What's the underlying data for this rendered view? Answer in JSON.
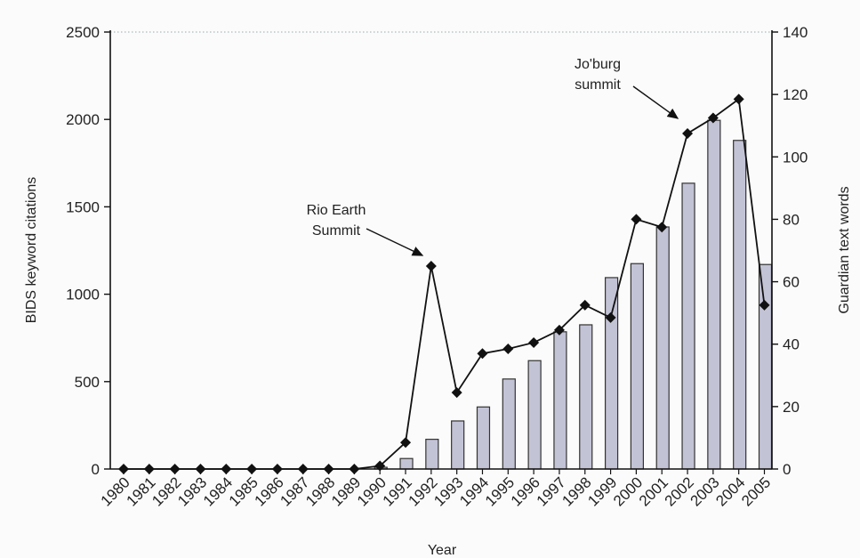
{
  "chart_data": {
    "type": "bar",
    "title": "",
    "xlabel": "Year",
    "ylabel_left": "BIDS keyword citations",
    "ylabel_right": "Guardian text words",
    "categories": [
      "1980",
      "1981",
      "1982",
      "1983",
      "1984",
      "1985",
      "1986",
      "1987",
      "1988",
      "1989",
      "1990",
      "1991",
      "1992",
      "1993",
      "1994",
      "1995",
      "1996",
      "1997",
      "1998",
      "1999",
      "2000",
      "2001",
      "2002",
      "2003",
      "2004",
      "2005"
    ],
    "ylim_left": [
      0,
      2500
    ],
    "yticks_left": [
      0,
      500,
      1000,
      1500,
      2000,
      2500
    ],
    "ylim_right": [
      0,
      140
    ],
    "yticks_right": [
      0,
      20,
      40,
      60,
      80,
      100,
      120,
      140
    ],
    "grid": false,
    "series": [
      {
        "kind": "bar",
        "axis": "left",
        "color": "#c3c3d6",
        "values": [
          0,
          0,
          0,
          0,
          0,
          0,
          0,
          0,
          0,
          0,
          10,
          60,
          170,
          275,
          355,
          515,
          620,
          785,
          825,
          1095,
          1175,
          1385,
          1635,
          1995,
          1880,
          1170
        ]
      },
      {
        "kind": "line",
        "axis": "right",
        "color": "#111111",
        "marker": "diamond",
        "values": [
          0,
          0,
          0,
          0,
          0,
          0,
          0,
          0,
          0,
          0,
          1,
          8.5,
          65,
          24.5,
          37,
          38.5,
          40.5,
          44.5,
          52.5,
          48.5,
          80,
          77.5,
          107.5,
          112.5,
          118.5,
          52.5
        ]
      }
    ],
    "annotations": [
      {
        "lines": [
          "Rio Earth",
          "Summit"
        ],
        "target": "1992"
      },
      {
        "lines": [
          "Jo'burg",
          "summit"
        ],
        "target": "2002"
      }
    ]
  }
}
